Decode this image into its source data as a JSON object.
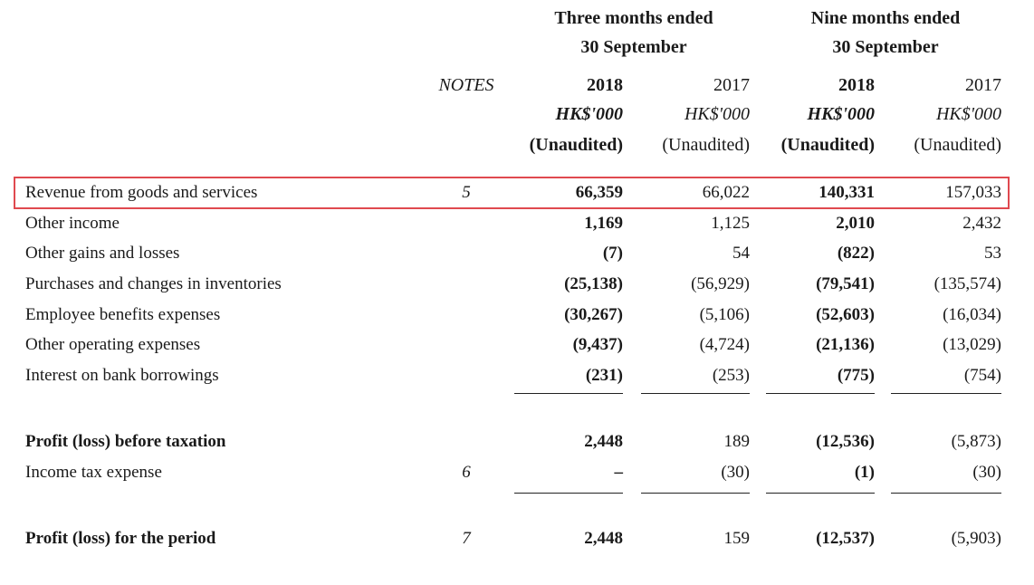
{
  "header": {
    "period_groups": [
      {
        "line1": "Three months ended",
        "line2": "30 September"
      },
      {
        "line1": "Nine months ended",
        "line2": "30 September"
      }
    ],
    "notes_label": "NOTES",
    "columns": [
      {
        "year": "2018",
        "currency": "HK$'000",
        "status": "(Unaudited)",
        "bold": true
      },
      {
        "year": "2017",
        "currency": "HK$'000",
        "status": "(Unaudited)",
        "bold": false
      },
      {
        "year": "2018",
        "currency": "HK$'000",
        "status": "(Unaudited)",
        "bold": true
      },
      {
        "year": "2017",
        "currency": "HK$'000",
        "status": "(Unaudited)",
        "bold": false
      }
    ]
  },
  "rows": [
    {
      "label": "Revenue from goods and services",
      "note": "5",
      "values": [
        "66,359",
        "66,022",
        "140,331",
        "157,033"
      ],
      "bold_label": false,
      "highlighted": true
    },
    {
      "label": "Other income",
      "note": "",
      "values": [
        "1,169",
        "1,125",
        "2,010",
        "2,432"
      ],
      "bold_label": false
    },
    {
      "label": "Other gains and losses",
      "note": "",
      "values": [
        "(7)",
        "54",
        "(822)",
        "53"
      ],
      "bold_label": false
    },
    {
      "label": "Purchases and changes in inventories",
      "note": "",
      "values": [
        "(25,138)",
        "(56,929)",
        "(79,541)",
        "(135,574)"
      ],
      "bold_label": false
    },
    {
      "label": "Employee benefits expenses",
      "note": "",
      "values": [
        "(30,267)",
        "(5,106)",
        "(52,603)",
        "(16,034)"
      ],
      "bold_label": false
    },
    {
      "label": "Other operating expenses",
      "note": "",
      "values": [
        "(9,437)",
        "(4,724)",
        "(21,136)",
        "(13,029)"
      ],
      "bold_label": false
    },
    {
      "label": "Interest on bank borrowings",
      "note": "",
      "values": [
        "(231)",
        "(253)",
        "(775)",
        "(754)"
      ],
      "bold_label": false
    },
    {
      "label": "Profit (loss) before taxation",
      "note": "",
      "values": [
        "2,448",
        "189",
        "(12,536)",
        "(5,873)"
      ],
      "bold_label": true
    },
    {
      "label": "Income tax expense",
      "note": "6",
      "values": [
        "–",
        "(30)",
        "(1)",
        "(30)"
      ],
      "bold_label": false
    },
    {
      "label": "Profit (loss) for the period",
      "note": "7",
      "values": [
        "2,448",
        "159",
        "(12,537)",
        "(5,903)"
      ],
      "bold_label": true
    }
  ],
  "highlight_color": "#e0494f"
}
